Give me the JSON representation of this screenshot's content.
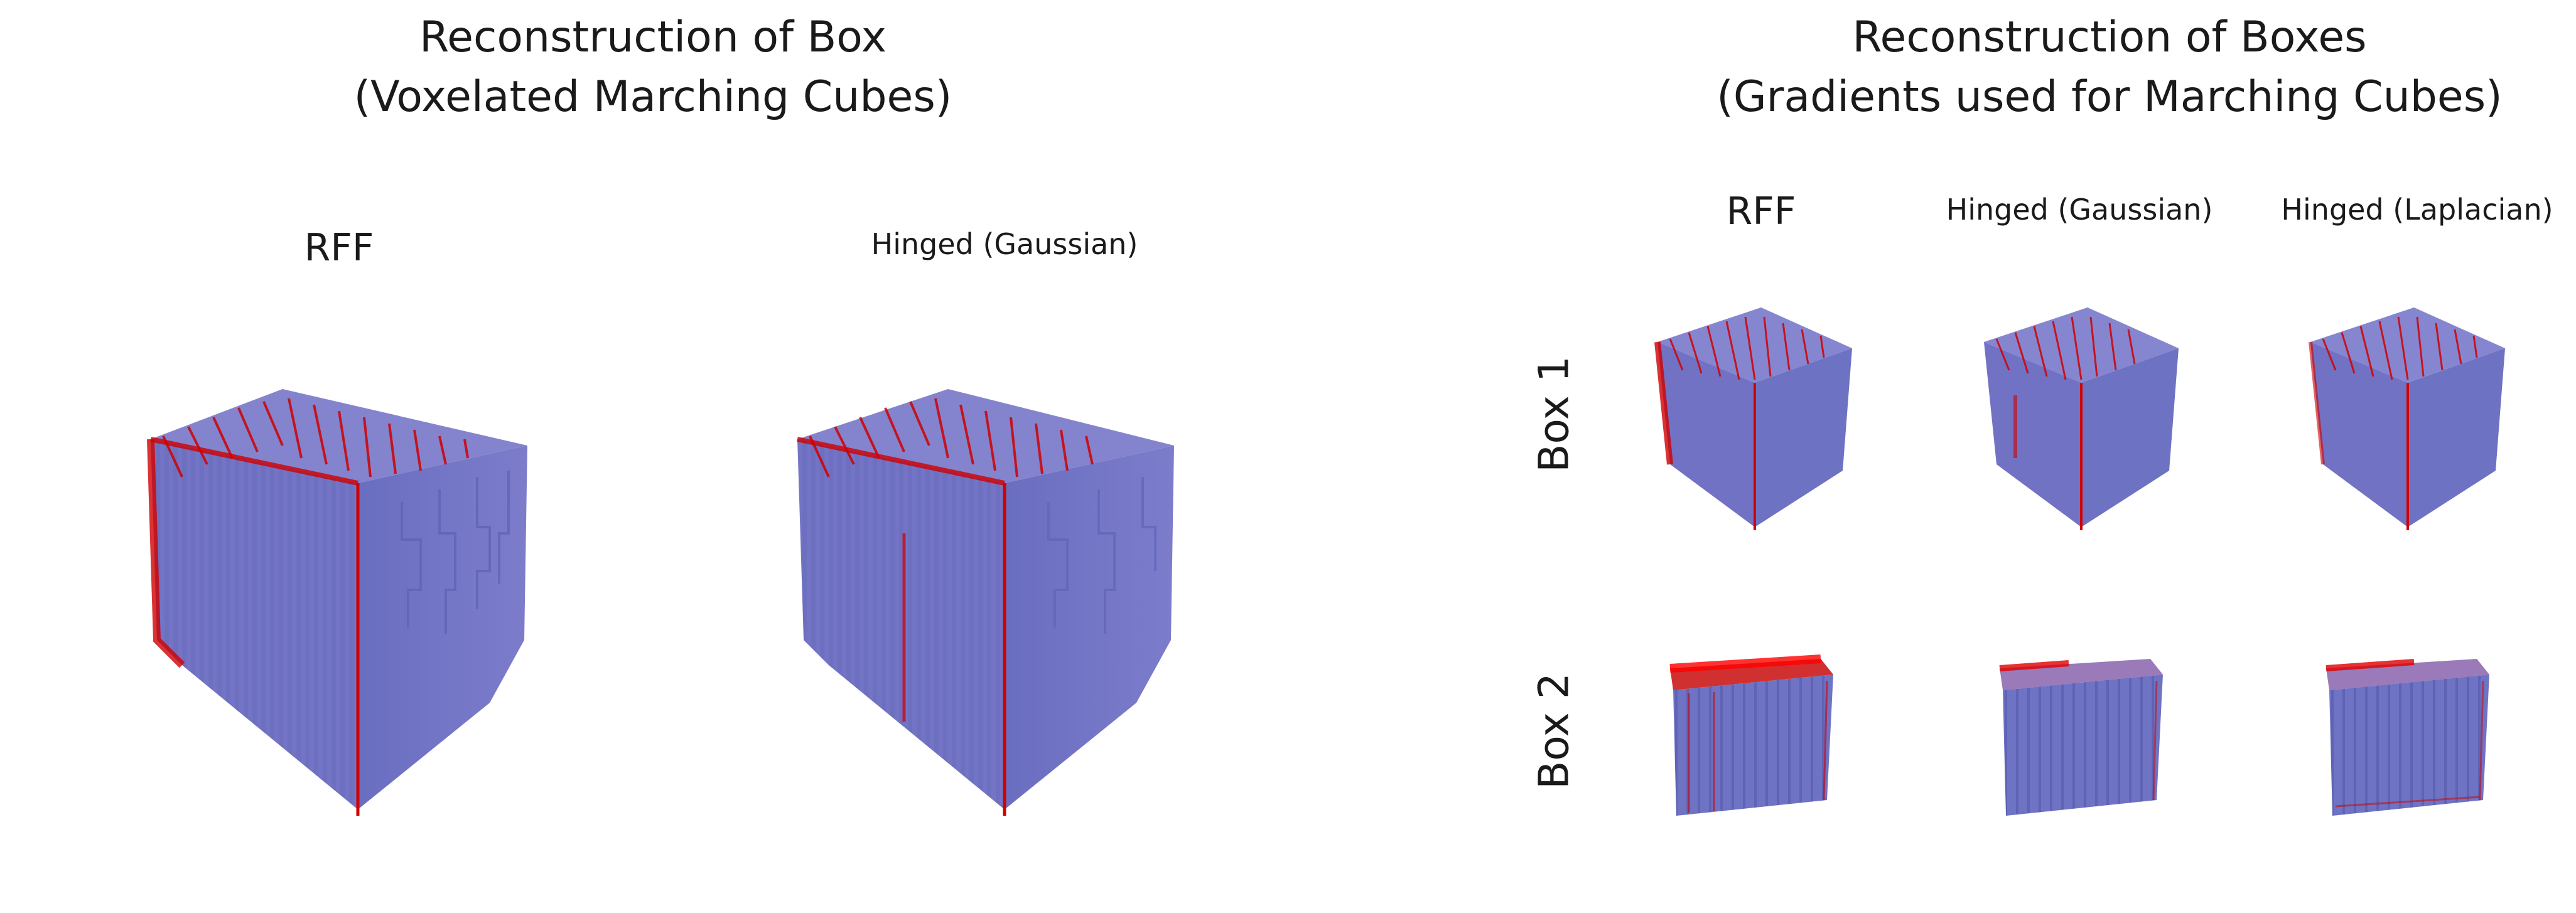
{
  "left_figure": {
    "title_line1": "Reconstruction of Box",
    "title_line2": "(Voxelated Marching Cubes)",
    "columns": [
      "RFF",
      "Hinged (Gaussian)"
    ]
  },
  "right_figure": {
    "title_line1": "Reconstruction of Boxes",
    "title_line2": "(Gradients used for Marching Cubes)",
    "columns": [
      "RFF",
      "Hinged (Gaussian)",
      "Hinged (Laplacian)"
    ],
    "rows": [
      "Box 1",
      "Box 2"
    ]
  },
  "colors": {
    "mesh_front": "#7676c8",
    "mesh_side": "#6e72c2",
    "mesh_top": "#8a8ad2",
    "gradient_arrows": "#e00000"
  }
}
